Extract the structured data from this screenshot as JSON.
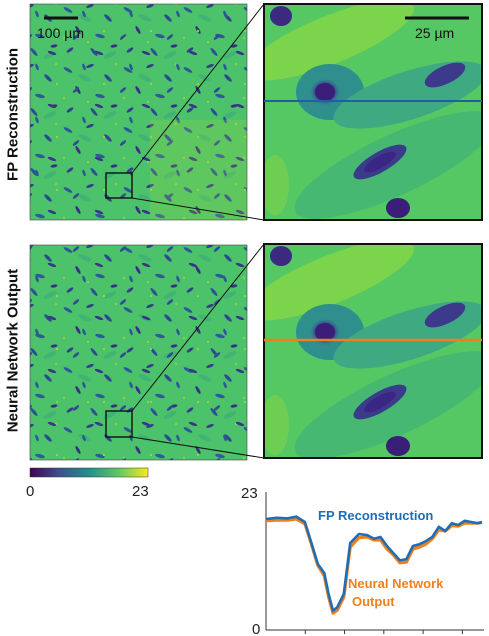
{
  "panels": {
    "fp_label": "FP Reconstruction",
    "nn_label": "Neural Network Output",
    "scalebar_overview": "100 µm",
    "scalebar_zoom": "25 µm"
  },
  "colorbar": {
    "min_label": "0",
    "max_label": "23",
    "colormap": [
      "#440154",
      "#3b528b",
      "#21908d",
      "#5dc962",
      "#fde725"
    ]
  },
  "colors": {
    "image_background": "#3fbf6f",
    "fp_line": "#1f5fa8",
    "nn_line": "#f07f1c"
  },
  "chart_data": {
    "type": "line",
    "ylim": [
      0,
      23
    ],
    "ytick_labels": [
      "23",
      "0"
    ],
    "xlim": [
      0,
      100
    ],
    "series": [
      {
        "name": "FP Reconstruction",
        "color": "#1f6db4",
        "x": [
          0,
          5,
          10,
          14,
          18,
          21,
          24,
          27,
          29,
          31,
          33,
          36,
          39,
          43,
          47,
          50,
          53,
          56,
          59,
          62,
          65,
          68,
          71,
          74,
          77,
          80,
          83,
          86,
          89,
          92,
          95,
          98,
          100
        ],
        "y": [
          18.5,
          18.7,
          18.6,
          18.9,
          18.0,
          14.5,
          11.0,
          9.5,
          6.0,
          3.2,
          3.8,
          6.0,
          14.5,
          16.0,
          15.8,
          15.2,
          15.5,
          14.0,
          12.8,
          11.6,
          11.8,
          14.0,
          14.3,
          14.8,
          15.5,
          17.2,
          16.5,
          17.8,
          17.5,
          18.2,
          18.0,
          17.8,
          18.0
        ]
      },
      {
        "name": "Neural Network Output",
        "color": "#f0801c",
        "x": [
          0,
          5,
          10,
          14,
          18,
          21,
          24,
          27,
          29,
          31,
          33,
          36,
          39,
          43,
          47,
          50,
          53,
          56,
          59,
          62,
          65,
          68,
          71,
          74,
          77,
          80,
          83,
          86,
          89,
          92,
          95,
          98,
          100
        ],
        "y": [
          18.2,
          18.3,
          18.3,
          18.5,
          17.7,
          14.3,
          10.8,
          9.0,
          5.5,
          2.8,
          3.3,
          5.5,
          13.8,
          15.4,
          15.5,
          15.0,
          15.0,
          13.5,
          12.5,
          11.2,
          11.3,
          13.5,
          13.8,
          14.3,
          15.2,
          16.7,
          16.5,
          17.4,
          17.3,
          17.8,
          17.8,
          17.8,
          17.9
        ]
      }
    ]
  }
}
